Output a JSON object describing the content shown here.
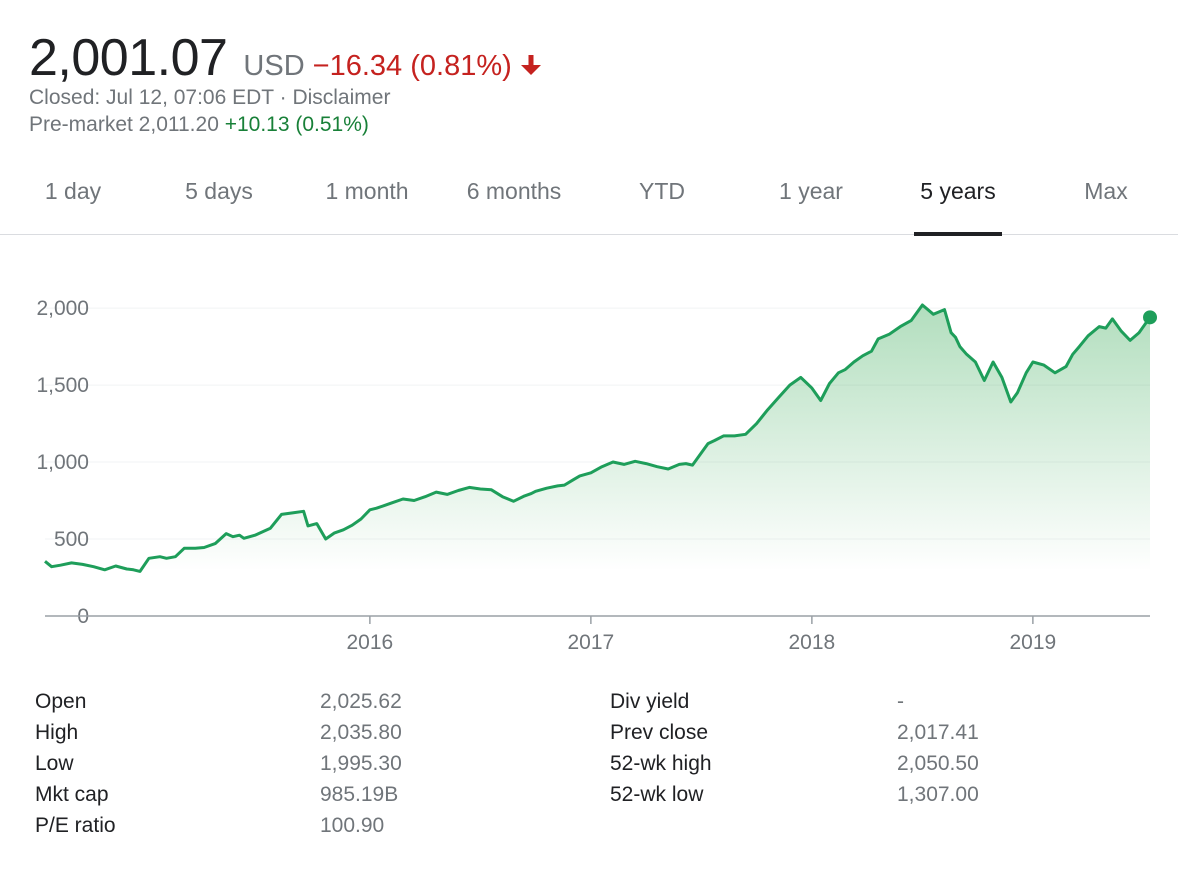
{
  "quote": {
    "price": "2,001.07",
    "currency": "USD",
    "change": "−16.34 (0.81%)",
    "direction": "down",
    "closed_text": "Closed: Jul 12, 07:06 EDT",
    "separator": " · ",
    "disclaimer": "Disclaimer",
    "premarket_label": "Pre-market 2,011.20",
    "premarket_change": "+10.13 (0.51%)"
  },
  "tabs": [
    {
      "label": "1 day",
      "active": false
    },
    {
      "label": "5 days",
      "active": false
    },
    {
      "label": "1 month",
      "active": false
    },
    {
      "label": "6 months",
      "active": false
    },
    {
      "label": "YTD",
      "active": false
    },
    {
      "label": "1 year",
      "active": false
    },
    {
      "label": "5 years",
      "active": true
    },
    {
      "label": "Max",
      "active": false
    }
  ],
  "colors": {
    "line": "#1e9e5a",
    "fill": "#34a853",
    "down": "#c5221f",
    "up": "#188038"
  },
  "chart_data": {
    "type": "area",
    "x_unit": "year",
    "ylim": [
      0,
      2150
    ],
    "xlim": [
      2014.53,
      2019.53
    ],
    "yticks": [
      0,
      500,
      1000,
      1500,
      2000
    ],
    "ytick_labels": [
      "0",
      "500",
      "1,000",
      "1,500",
      "2,000"
    ],
    "xticks": [
      2016,
      2017,
      2018,
      2019
    ],
    "xtick_labels": [
      "2016",
      "2017",
      "2018",
      "2019"
    ],
    "grid": true,
    "series": [
      {
        "x": [
          2014.53,
          2014.56,
          2014.6,
          2014.65,
          2014.7,
          2014.75,
          2014.8,
          2014.85,
          2014.9,
          2014.93,
          2014.96,
          2015.0,
          2015.05,
          2015.08,
          2015.12,
          2015.16,
          2015.21,
          2015.25,
          2015.3,
          2015.35,
          2015.38,
          2015.41,
          2015.43,
          2015.48,
          2015.55,
          2015.6,
          2015.65,
          2015.7,
          2015.72,
          2015.76,
          2015.8,
          2015.84,
          2015.88,
          2015.92,
          2015.96,
          2016.0,
          2016.03,
          2016.07,
          2016.1,
          2016.15,
          2016.2,
          2016.25,
          2016.3,
          2016.35,
          2016.4,
          2016.45,
          2016.5,
          2016.55,
          2016.6,
          2016.65,
          2016.7,
          2016.73,
          2016.75,
          2016.8,
          2016.85,
          2016.88,
          2016.92,
          2016.95,
          2017.0,
          2017.05,
          2017.1,
          2017.15,
          2017.2,
          2017.25,
          2017.3,
          2017.35,
          2017.4,
          2017.43,
          2017.46,
          2017.5,
          2017.53,
          2017.56,
          2017.6,
          2017.65,
          2017.7,
          2017.75,
          2017.8,
          2017.85,
          2017.9,
          2017.95,
          2018.0,
          2018.04,
          2018.08,
          2018.12,
          2018.15,
          2018.19,
          2018.23,
          2018.27,
          2018.3,
          2018.35,
          2018.4,
          2018.45,
          2018.5,
          2018.55,
          2018.6,
          2018.63,
          2018.65,
          2018.67,
          2018.7,
          2018.74,
          2018.78,
          2018.82,
          2018.86,
          2018.9,
          2018.93,
          2018.97,
          2019.0,
          2019.05,
          2019.1,
          2019.15,
          2019.18,
          2019.21,
          2019.25,
          2019.3,
          2019.33,
          2019.36,
          2019.4,
          2019.44,
          2019.48,
          2019.53
        ],
        "y": [
          355,
          320,
          330,
          345,
          335,
          320,
          300,
          325,
          305,
          300,
          290,
          375,
          385,
          375,
          385,
          440,
          440,
          445,
          470,
          535,
          515,
          525,
          505,
          525,
          570,
          660,
          670,
          680,
          585,
          600,
          500,
          540,
          560,
          590,
          630,
          690,
          700,
          720,
          735,
          760,
          750,
          775,
          805,
          790,
          815,
          835,
          825,
          820,
          775,
          745,
          780,
          795,
          810,
          830,
          845,
          850,
          885,
          910,
          930,
          970,
          1000,
          985,
          1005,
          990,
          970,
          955,
          985,
          990,
          980,
          1060,
          1120,
          1140,
          1170,
          1170,
          1180,
          1250,
          1340,
          1420,
          1500,
          1550,
          1480,
          1400,
          1510,
          1580,
          1600,
          1650,
          1690,
          1720,
          1800,
          1830,
          1880,
          1920,
          2020,
          1960,
          1990,
          1840,
          1810,
          1750,
          1700,
          1650,
          1530,
          1650,
          1550,
          1390,
          1450,
          1580,
          1650,
          1630,
          1580,
          1620,
          1700,
          1750,
          1820,
          1880,
          1870,
          1930,
          1850,
          1790,
          1840,
          1940
        ]
      }
    ],
    "last_value": 1940
  },
  "stats": {
    "left": [
      {
        "label": "Open",
        "value": "2,025.62"
      },
      {
        "label": "High",
        "value": "2,035.80"
      },
      {
        "label": "Low",
        "value": "1,995.30"
      },
      {
        "label": "Mkt cap",
        "value": "985.19B"
      },
      {
        "label": "P/E ratio",
        "value": "100.90"
      }
    ],
    "right": [
      {
        "label": "Div yield",
        "value": "-"
      },
      {
        "label": "Prev close",
        "value": "2,017.41"
      },
      {
        "label": "52-wk high",
        "value": "2,050.50"
      },
      {
        "label": "52-wk low",
        "value": "1,307.00"
      }
    ]
  }
}
